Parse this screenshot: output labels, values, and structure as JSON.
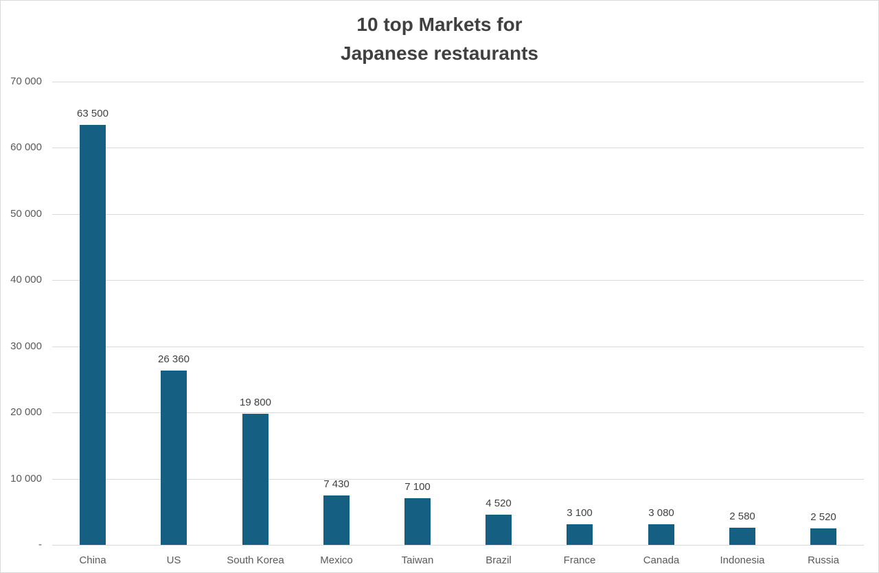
{
  "chart_data": {
    "type": "bar",
    "title": "10 top Markets for Japanese restaurants",
    "title_lines": [
      "10 top Markets for",
      "Japanese restaurants"
    ],
    "categories": [
      "China",
      "US",
      "South Korea",
      "Mexico",
      "Taiwan",
      "Brazil",
      "France",
      "Canada",
      "Indonesia",
      "Russia"
    ],
    "values": [
      63500,
      26360,
      19800,
      7430,
      7100,
      4520,
      3100,
      3080,
      2580,
      2520
    ],
    "value_labels": [
      "63 500",
      "26 360",
      "19 800",
      "7 430",
      "7 100",
      "4 520",
      "3 100",
      "3 080",
      "2 580",
      "2 520"
    ],
    "y_ticks": [
      {
        "value": 0,
        "label": "-"
      },
      {
        "value": 10000,
        "label": "10 000"
      },
      {
        "value": 20000,
        "label": "20 000"
      },
      {
        "value": 30000,
        "label": "30 000"
      },
      {
        "value": 40000,
        "label": "40 000"
      },
      {
        "value": 50000,
        "label": "50 000"
      },
      {
        "value": 60000,
        "label": "60 000"
      },
      {
        "value": 70000,
        "label": "70 000"
      }
    ],
    "ylim": [
      0,
      70000
    ],
    "xlabel": "",
    "ylabel": "",
    "grid": true,
    "legend": "none",
    "colors": {
      "bar": "#156082",
      "gridline": "#d9d9d9",
      "title": "#404040",
      "value_label": "#404040",
      "axis_label": "#595959"
    }
  }
}
